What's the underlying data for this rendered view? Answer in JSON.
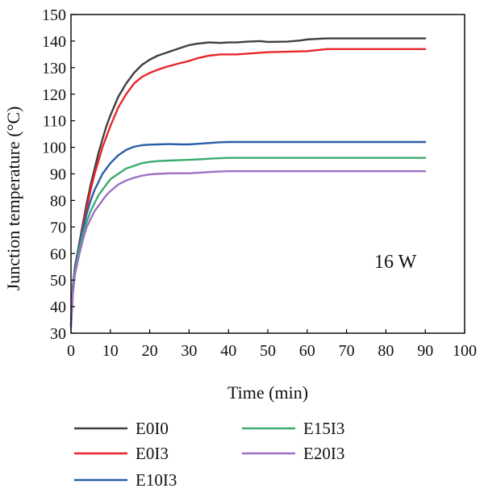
{
  "chart_data": {
    "type": "line",
    "title": "",
    "xlabel": "Time (min)",
    "ylabel": "Junction temperature (°C)",
    "xlim": [
      0,
      100
    ],
    "ylim": [
      30,
      150
    ],
    "xticks": [
      0,
      10,
      20,
      30,
      40,
      50,
      60,
      70,
      80,
      90,
      100
    ],
    "yticks": [
      30,
      40,
      50,
      60,
      70,
      80,
      90,
      100,
      110,
      120,
      130,
      140,
      150
    ],
    "grid": false,
    "legend_position": "bottom",
    "annotation": "16 W",
    "series": [
      {
        "name": "E0I0",
        "color": "#404040",
        "x": [
          0,
          0.5,
          1,
          2,
          3,
          4,
          5,
          6,
          7,
          8,
          9,
          10,
          12,
          14,
          16,
          18,
          20,
          22,
          24,
          26,
          28,
          30,
          32,
          35,
          38,
          40,
          42,
          45,
          48,
          50,
          55,
          58,
          60,
          62,
          65,
          70,
          80,
          90
        ],
        "y": [
          33,
          48,
          55,
          63,
          71,
          79,
          86,
          92,
          98,
          103,
          108,
          112,
          119,
          124,
          128,
          131,
          133,
          134.5,
          135.5,
          136.5,
          137.5,
          138.5,
          139,
          139.5,
          139.3,
          139.5,
          139.5,
          139.8,
          140,
          139.7,
          139.8,
          140.2,
          140.6,
          140.8,
          141,
          141,
          141,
          141
        ]
      },
      {
        "name": "E0I3",
        "color": "#e8262a",
        "x": [
          0,
          0.5,
          1,
          2,
          3,
          4,
          5,
          6,
          7,
          8,
          9,
          10,
          12,
          14,
          16,
          18,
          20,
          22,
          24,
          26,
          28,
          30,
          32,
          35,
          38,
          40,
          42,
          45,
          50,
          55,
          60,
          62,
          65,
          70,
          80,
          90
        ],
        "y": [
          33,
          47,
          54,
          62,
          70,
          77,
          84,
          90,
          95,
          100,
          104,
          108,
          115,
          120,
          124,
          126.5,
          128,
          129.2,
          130.2,
          131,
          131.8,
          132.5,
          133.5,
          134.5,
          135,
          135,
          135,
          135.3,
          135.8,
          136,
          136.2,
          136.5,
          137,
          137,
          137,
          137
        ]
      },
      {
        "name": "E10I3",
        "color": "#2a5ea8",
        "x": [
          0,
          0.5,
          1,
          2,
          3,
          4,
          5,
          6,
          7,
          8,
          9,
          10,
          12,
          14,
          16,
          18,
          20,
          22,
          25,
          28,
          30,
          32,
          35,
          38,
          40,
          45,
          50,
          60,
          70,
          80,
          90
        ],
        "y": [
          33,
          47,
          54,
          62,
          69,
          75,
          80,
          84,
          87,
          90,
          92,
          94,
          97,
          99,
          100.2,
          100.8,
          101,
          101.1,
          101.2,
          101.1,
          101.1,
          101.3,
          101.6,
          101.9,
          102,
          102,
          102,
          102,
          102,
          102,
          102
        ]
      },
      {
        "name": "E15I3",
        "color": "#3daa6e",
        "x": [
          0,
          0.5,
          1,
          2,
          3,
          4,
          5,
          6,
          7,
          8,
          9,
          10,
          12,
          14,
          16,
          18,
          20,
          22,
          25,
          28,
          30,
          33,
          36,
          40,
          45,
          50,
          60,
          70,
          80,
          90
        ],
        "y": [
          33,
          46,
          53,
          61,
          67,
          72,
          76,
          79,
          82,
          84,
          86,
          88,
          90,
          92,
          93,
          94,
          94.5,
          94.8,
          95,
          95.2,
          95.3,
          95.5,
          95.8,
          96,
          96,
          96,
          96,
          96,
          96,
          96
        ]
      },
      {
        "name": "E20I3",
        "color": "#9c72c2",
        "x": [
          0,
          0.5,
          1,
          2,
          3,
          4,
          5,
          6,
          7,
          8,
          9,
          10,
          12,
          14,
          16,
          18,
          20,
          22,
          25,
          28,
          30,
          33,
          36,
          40,
          45,
          50,
          60,
          70,
          80,
          90
        ],
        "y": [
          32,
          45,
          52,
          59,
          65,
          70,
          73,
          76,
          78,
          80,
          82,
          83.5,
          86,
          87.5,
          88.5,
          89.3,
          89.8,
          90,
          90.2,
          90.2,
          90.2,
          90.5,
          90.8,
          91,
          91,
          91,
          91,
          91,
          91,
          91
        ]
      }
    ]
  }
}
